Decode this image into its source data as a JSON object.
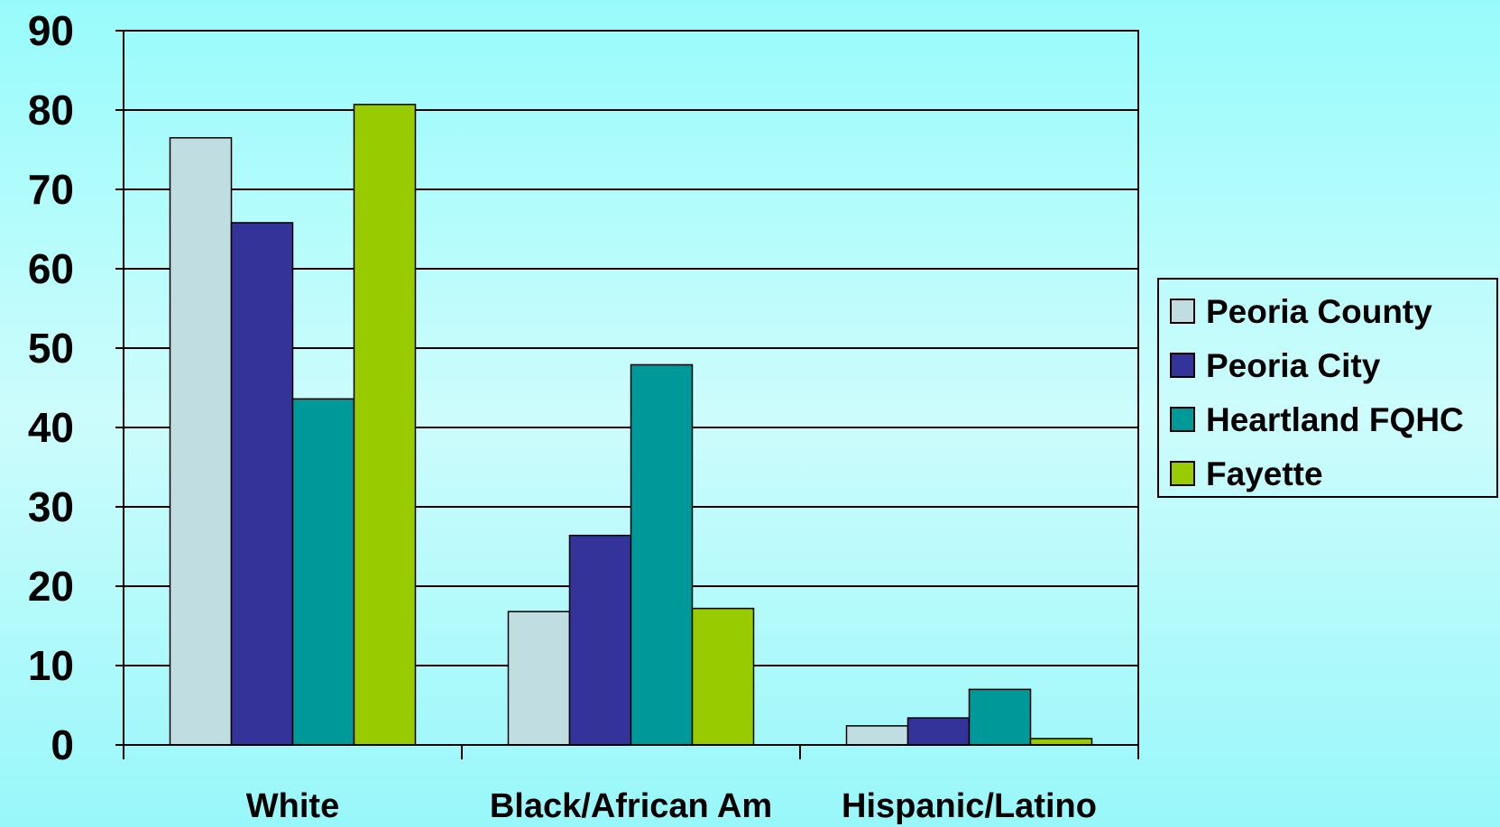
{
  "chart_data": {
    "type": "bar",
    "title": "",
    "xlabel": "",
    "ylabel": "",
    "categories": [
      "White",
      "Black/African Am",
      "Hispanic/Latino"
    ],
    "series": [
      {
        "name": "Peoria County",
        "color": "#C0DEE2",
        "values": [
          76.5,
          16.8,
          2.4
        ]
      },
      {
        "name": "Peoria City",
        "color": "#333399",
        "values": [
          65.8,
          26.4,
          3.4
        ]
      },
      {
        "name": "Heartland FQHC",
        "color": "#009999",
        "values": [
          43.6,
          47.9,
          7.0
        ]
      },
      {
        "name": "Fayette",
        "color": "#99CC00",
        "values": [
          80.7,
          17.2,
          0.8
        ]
      }
    ],
    "ylim": [
      0,
      90
    ],
    "yticks": [
      "0",
      "10",
      "20",
      "30",
      "40",
      "50",
      "60",
      "70",
      "80",
      "90"
    ],
    "grid": true,
    "legend_position": "right"
  }
}
